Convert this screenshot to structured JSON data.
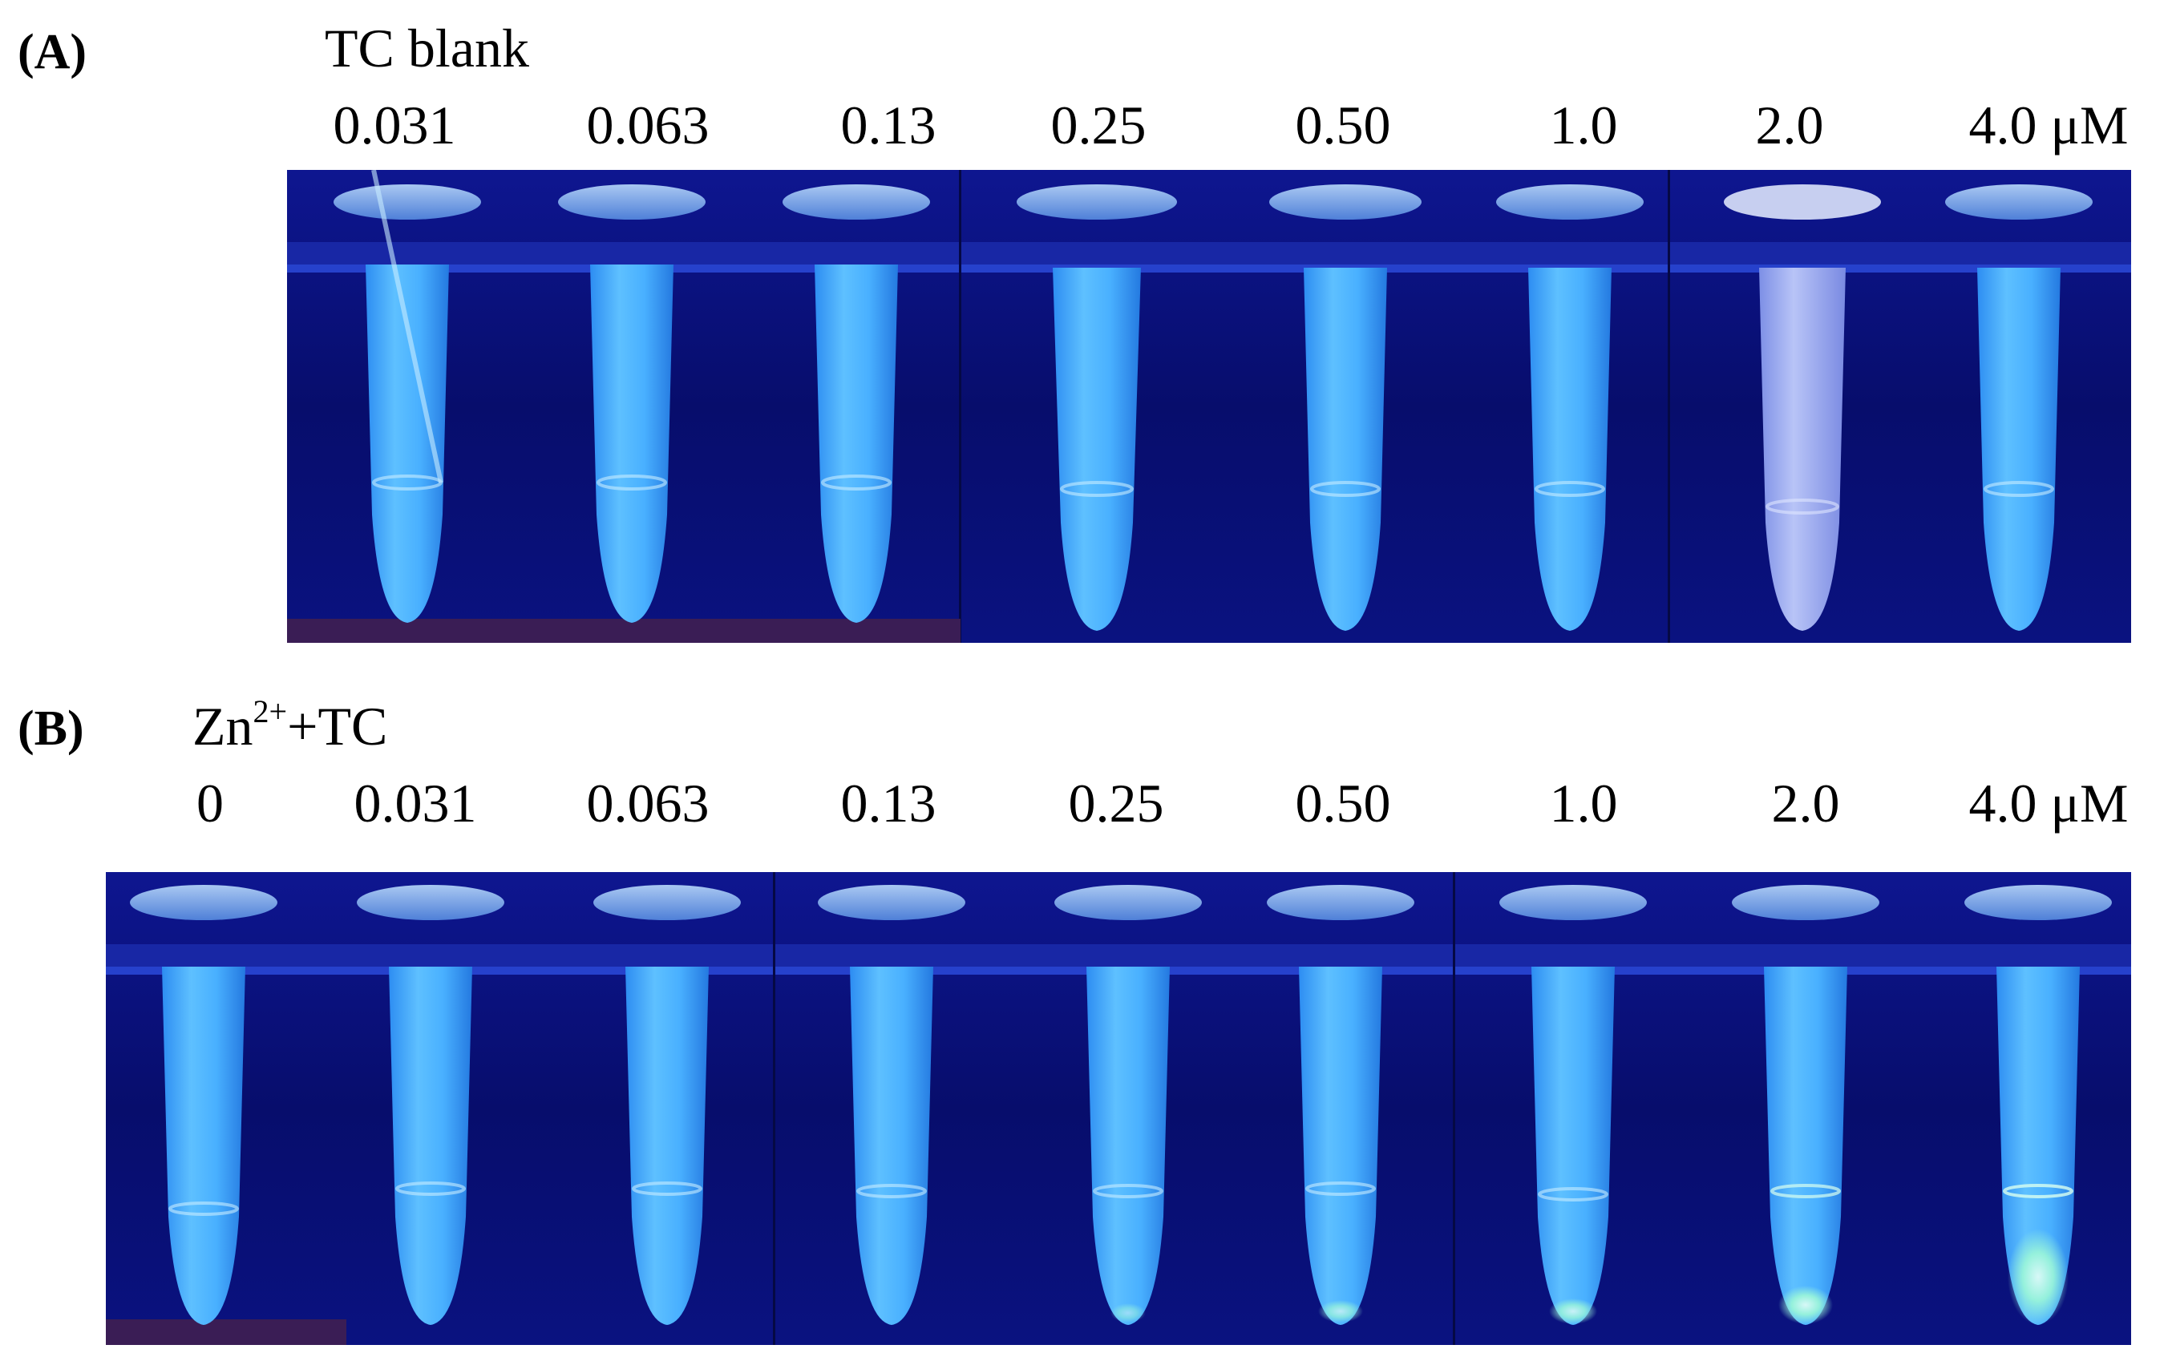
{
  "panel_a": {
    "label": "(A)",
    "title": "TC blank",
    "concentrations": [
      "0.031",
      "0.063",
      "0.13",
      "0.25",
      "0.50",
      "1.0",
      "2.0",
      "4.0 μM"
    ]
  },
  "panel_b": {
    "label": "(B)",
    "title_base": "Zn",
    "title_superscript": "2+",
    "title_suffix": "+TC",
    "concentrations": [
      "0",
      "0.031",
      "0.063",
      "0.13",
      "0.25",
      "0.50",
      "1.0",
      "2.0",
      "4.0 μM"
    ]
  },
  "colors": {
    "background_uv": "#0a0f78",
    "tube_glow": "#3aa6ff",
    "tube_highlight": "#b8e6ff",
    "sediment_glow": "#9cf7d8"
  }
}
